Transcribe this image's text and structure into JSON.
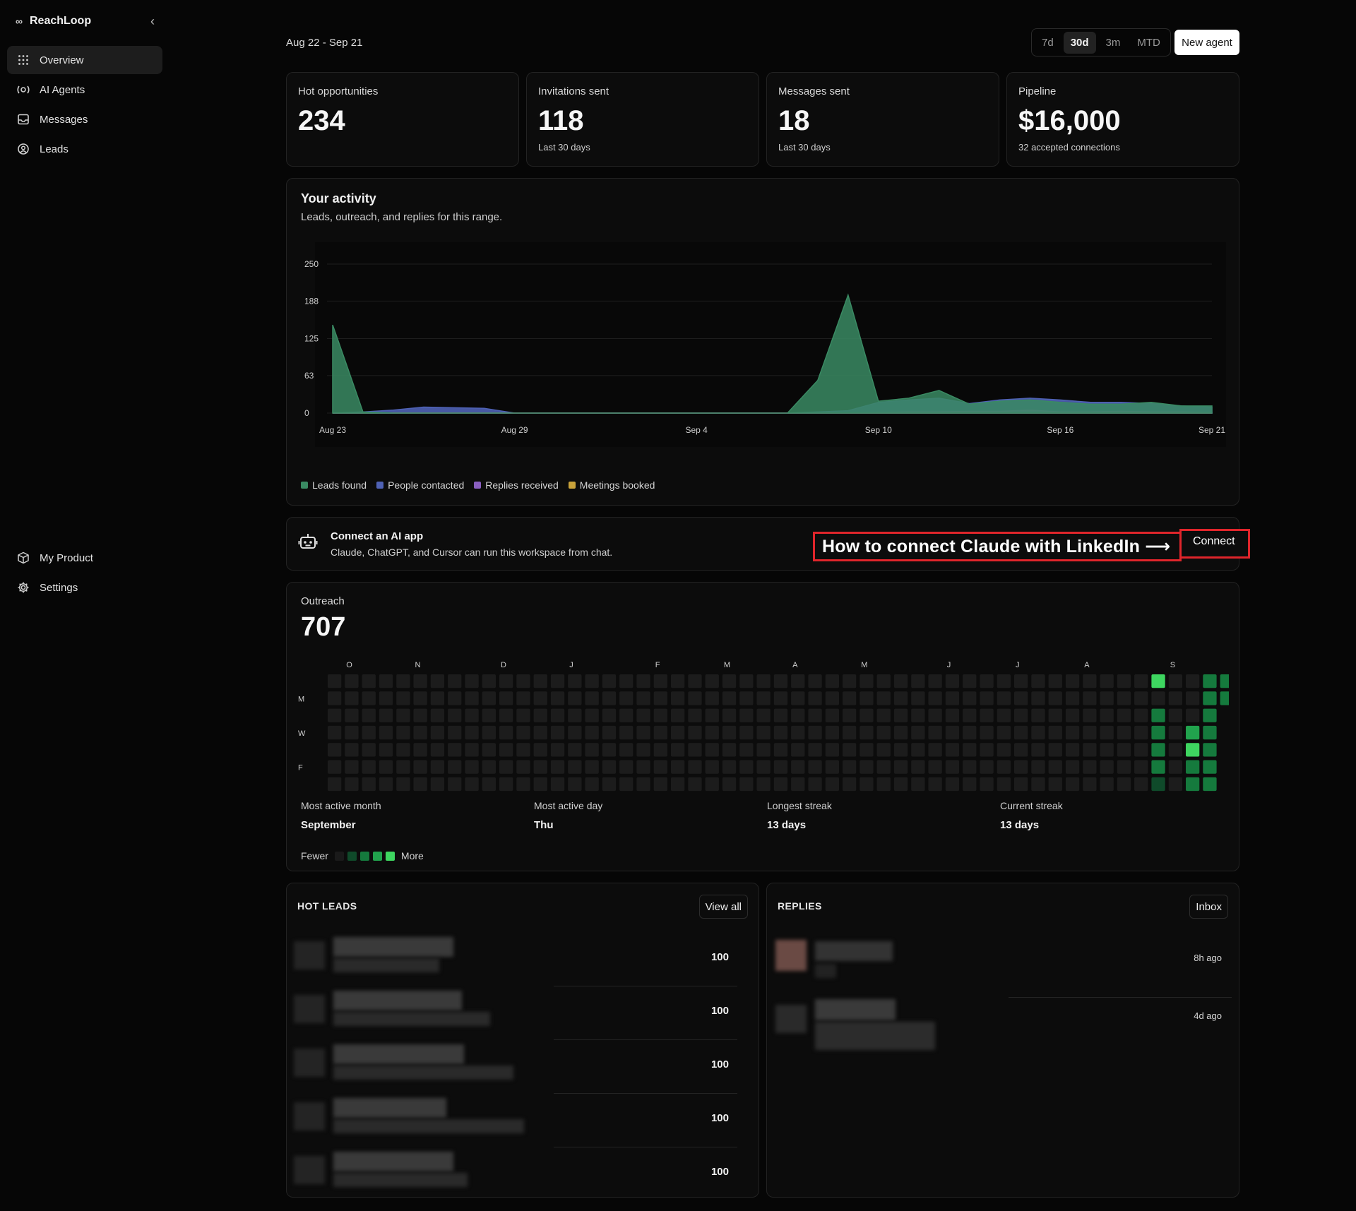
{
  "sidebar": {
    "brand": "ReachLoop",
    "items": [
      {
        "label": "Overview",
        "icon": "grid-icon",
        "active": true
      },
      {
        "label": "AI Agents",
        "icon": "agent-icon"
      },
      {
        "label": "Messages",
        "icon": "inbox-icon"
      },
      {
        "label": "Leads",
        "icon": "target-icon"
      }
    ],
    "bottom_items": [
      {
        "label": "My Product",
        "icon": "box-icon"
      },
      {
        "label": "Settings",
        "icon": "gear-icon"
      }
    ]
  },
  "header": {
    "date_range": "Aug 22 - Sep 21",
    "ranges": [
      "7d",
      "30d",
      "3m",
      "MTD"
    ],
    "selected_range": "30d",
    "new_agent_label": "New agent"
  },
  "stats": [
    {
      "label": "Hot opportunities",
      "value": "234",
      "sub": ""
    },
    {
      "label": "Invitations sent",
      "value": "118",
      "sub": "Last 30 days"
    },
    {
      "label": "Messages sent",
      "value": "18",
      "sub": "Last 30 days"
    },
    {
      "label": "Pipeline",
      "value": "$16,000",
      "sub": "32 accepted connections"
    }
  ],
  "activity": {
    "title": "Your activity",
    "subtitle": "Leads, outreach, and replies for this range."
  },
  "chart_data": {
    "type": "area",
    "y_ticks": [
      "250",
      "188",
      "125",
      "63",
      "0"
    ],
    "ylim": [
      0,
      250
    ],
    "x_tick_labels": [
      "Aug 23",
      "Aug 29",
      "Sep 4",
      "Sep 10",
      "Sep 16",
      "Sep 21"
    ],
    "x": [
      "Aug 23",
      "Aug 24",
      "Aug 25",
      "Aug 26",
      "Aug 27",
      "Aug 28",
      "Aug 29",
      "Aug 30",
      "Aug 31",
      "Sep 1",
      "Sep 2",
      "Sep 3",
      "Sep 4",
      "Sep 5",
      "Sep 6",
      "Sep 7",
      "Sep 8",
      "Sep 9",
      "Sep 10",
      "Sep 11",
      "Sep 12",
      "Sep 13",
      "Sep 14",
      "Sep 15",
      "Sep 16",
      "Sep 17",
      "Sep 18",
      "Sep 19",
      "Sep 20",
      "Sep 21"
    ],
    "series": [
      {
        "name": "Leads found",
        "color": "#3a8a63",
        "values": [
          148,
          2,
          0,
          0,
          0,
          0,
          0,
          0,
          0,
          0,
          0,
          0,
          0,
          0,
          0,
          0,
          55,
          198,
          20,
          25,
          38,
          15,
          20,
          22,
          18,
          15,
          15,
          18,
          12,
          12
        ]
      },
      {
        "name": "People contacted",
        "color": "#4f62b5",
        "values": [
          0,
          2,
          5,
          10,
          9,
          8,
          0,
          0,
          0,
          0,
          0,
          0,
          0,
          0,
          0,
          0,
          2,
          4,
          18,
          22,
          25,
          16,
          22,
          25,
          22,
          18,
          18,
          16,
          12,
          10
        ]
      },
      {
        "name": "Replies received",
        "color": "#8a5fc0",
        "values": [
          0,
          0,
          0,
          0,
          0,
          0,
          0,
          0,
          0,
          0,
          0,
          0,
          0,
          0,
          0,
          0,
          0,
          0,
          1,
          2,
          2,
          3,
          3,
          5,
          2,
          2,
          3,
          2,
          2,
          1
        ]
      },
      {
        "name": "Meetings booked",
        "color": "#c9a23a",
        "values": [
          0,
          0,
          0,
          0,
          0,
          0,
          0,
          0,
          0,
          0,
          0,
          0,
          0,
          0,
          0,
          0,
          0,
          0,
          0,
          0,
          0,
          0,
          0,
          0,
          0,
          0,
          0,
          0,
          0,
          0
        ]
      }
    ],
    "grid": true,
    "legend": "bottom-left"
  },
  "ai_app": {
    "title": "Connect an AI app",
    "subtitle": "Claude, ChatGPT, and Cursor can run this workspace from chat.",
    "callout": "How to connect Claude with LinkedIn  ⟶",
    "button": "Connect"
  },
  "outreach": {
    "label": "Outreach",
    "total": "707",
    "months": [
      "O",
      "N",
      "D",
      "J",
      "F",
      "M",
      "A",
      "M",
      "J",
      "J",
      "A",
      "S"
    ],
    "days": [
      "M",
      "W",
      "F"
    ],
    "active_cells": [
      {
        "week": 48,
        "day": 0,
        "level": 4
      },
      {
        "week": 48,
        "day": 2,
        "level": 2
      },
      {
        "week": 48,
        "day": 3,
        "level": 2
      },
      {
        "week": 48,
        "day": 4,
        "level": 2
      },
      {
        "week": 48,
        "day": 5,
        "level": 2
      },
      {
        "week": 48,
        "day": 6,
        "level": 1
      },
      {
        "week": 50,
        "day": 3,
        "level": 3
      },
      {
        "week": 50,
        "day": 4,
        "level": 4
      },
      {
        "week": 50,
        "day": 5,
        "level": 2
      },
      {
        "week": 50,
        "day": 6,
        "level": 2
      },
      {
        "week": 51,
        "day": 0,
        "level": 2
      },
      {
        "week": 51,
        "day": 1,
        "level": 2
      },
      {
        "week": 51,
        "day": 2,
        "level": 2
      },
      {
        "week": 51,
        "day": 3,
        "level": 2
      },
      {
        "week": 51,
        "day": 4,
        "level": 2
      },
      {
        "week": 51,
        "day": 5,
        "level": 2
      },
      {
        "week": 51,
        "day": 6,
        "level": 2
      },
      {
        "week": 52,
        "day": 0,
        "level": 2
      },
      {
        "week": 52,
        "day": 1,
        "level": 2
      }
    ],
    "stats": [
      {
        "label": "Most active month",
        "value": "September"
      },
      {
        "label": "Most active day",
        "value": "Thu"
      },
      {
        "label": "Longest streak",
        "value": "13 days"
      },
      {
        "label": "Current streak",
        "value": "13 days"
      }
    ],
    "scale_fewer": "Fewer",
    "scale_more": "More"
  },
  "hot_leads": {
    "title": "HOT LEADS",
    "button": "View all",
    "scores": [
      "100",
      "100",
      "100",
      "100",
      "100"
    ]
  },
  "replies": {
    "title": "REPLIES",
    "button": "Inbox",
    "times": [
      "8h ago",
      "4d ago"
    ]
  }
}
